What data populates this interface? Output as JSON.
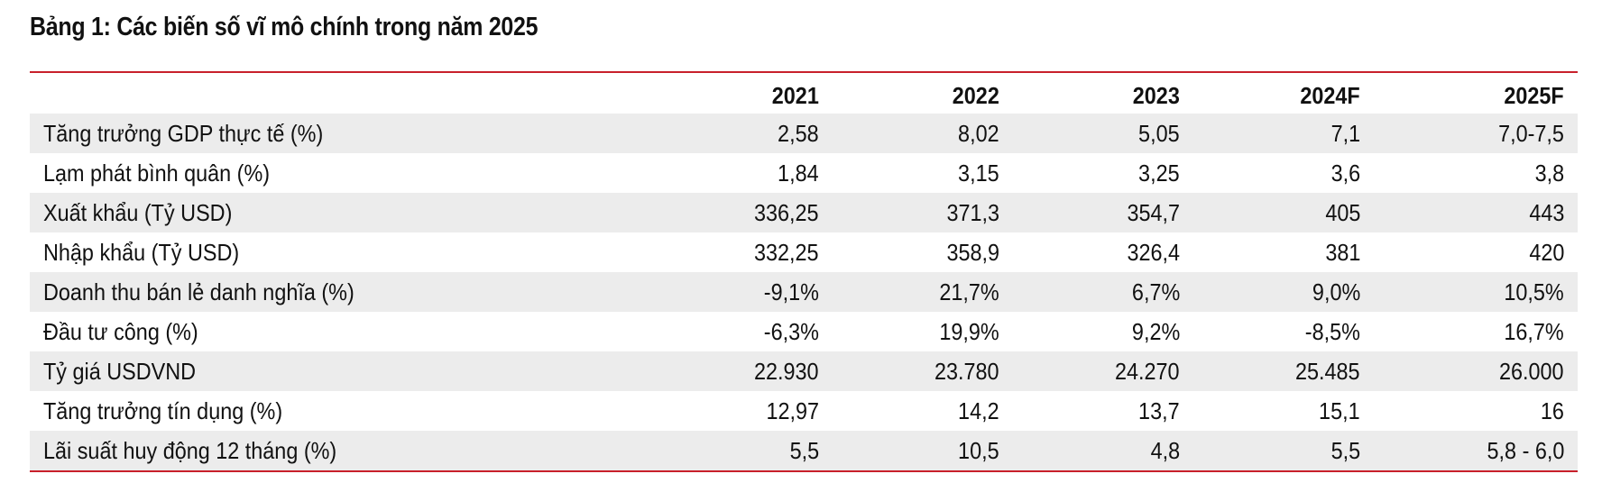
{
  "title": "Bảng 1: Các biến số vĩ mô chính trong năm 2025",
  "columns": [
    "",
    "2021",
    "2022",
    "2023",
    "2024F",
    "2025F"
  ],
  "rows": [
    {
      "label": "Tăng trưởng GDP thực tế (%)",
      "values": [
        "2,58",
        "8,02",
        "5,05",
        "7,1",
        "7,0-7,5"
      ]
    },
    {
      "label": "Lạm phát bình quân (%)",
      "values": [
        "1,84",
        "3,15",
        "3,25",
        "3,6",
        "3,8"
      ]
    },
    {
      "label": "Xuất khẩu (Tỷ USD)",
      "values": [
        "336,25",
        "371,3",
        "354,7",
        "405",
        "443"
      ]
    },
    {
      "label": "Nhập khẩu (Tỷ USD)",
      "values": [
        "332,25",
        "358,9",
        "326,4",
        "381",
        "420"
      ]
    },
    {
      "label": "Doanh thu bán lẻ danh nghĩa (%)",
      "values": [
        "-9,1%",
        "21,7%",
        "6,7%",
        "9,0%",
        "10,5%"
      ]
    },
    {
      "label": "Đầu tư công (%)",
      "values": [
        "-6,3%",
        "19,9%",
        "9,2%",
        "-8,5%",
        "16,7%"
      ]
    },
    {
      "label": "Tỷ giá USDVND",
      "values": [
        "22.930",
        "23.780",
        "24.270",
        "25.485",
        "26.000"
      ]
    },
    {
      "label": "Tăng trưởng tín dụng (%)",
      "values": [
        "12,97",
        "14,2",
        "13,7",
        "15,1",
        "16"
      ]
    },
    {
      "label": "Lãi suất huy động 12 tháng (%)",
      "values": [
        "5,5",
        "10,5",
        "4,8",
        "5,5",
        "5,8 - 6,0"
      ]
    }
  ],
  "colors": {
    "rule": "#c8202b",
    "shade": "#ececec",
    "text": "#111111"
  }
}
